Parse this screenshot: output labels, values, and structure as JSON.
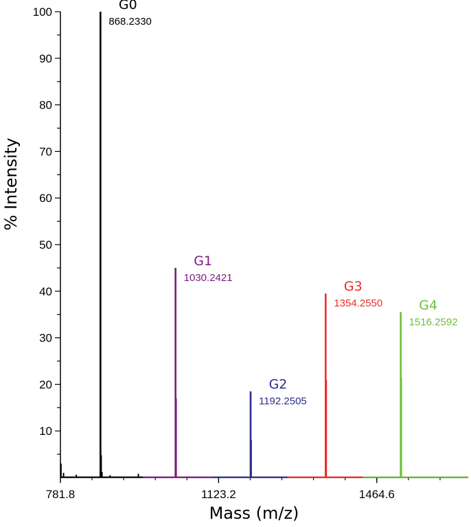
{
  "chart_data": {
    "type": "line",
    "xlabel": "Mass (m/z)",
    "ylabel": "% Intensity",
    "xlim": [
      781.8,
      1662.0
    ],
    "ylim": [
      0,
      100
    ],
    "x_ticks": [
      "781.8",
      "1123.2",
      "1464.6"
    ],
    "x_tick_values": [
      781.8,
      1123.2,
      1464.6
    ],
    "y_ticks": [
      "10",
      "20",
      "30",
      "40",
      "50",
      "60",
      "70",
      "80",
      "90",
      "100"
    ],
    "y_tick_values": [
      10,
      20,
      30,
      40,
      50,
      60,
      70,
      80,
      90,
      100
    ],
    "grid": false,
    "peaks": [
      {
        "name": "G0",
        "mass_label": "868.2330",
        "mass": 868.233,
        "intensity": 100,
        "color": "#000000"
      },
      {
        "name": "G1",
        "mass_label": "1030.2421",
        "mass": 1030.2421,
        "intensity": 45,
        "color": "#7b1a7e"
      },
      {
        "name": "G2",
        "mass_label": "1192.2505",
        "mass": 1192.2505,
        "intensity": 18.5,
        "color": "#2b2b8c"
      },
      {
        "name": "G3",
        "mass_label": "1354.2550",
        "mass": 1354.255,
        "intensity": 39.5,
        "color": "#ee2a2a"
      },
      {
        "name": "G4",
        "mass_label": "1516.2592",
        "mass": 1516.2592,
        "intensity": 35.5,
        "color": "#6cbf3a"
      }
    ],
    "minor_peaks": [
      {
        "mass": 783.0,
        "intensity": 3
      },
      {
        "mass": 788.5,
        "intensity": 1
      },
      {
        "mass": 816.0,
        "intensity": 0.6
      },
      {
        "mass": 869.8,
        "intensity": 4.8
      },
      {
        "mass": 871.5,
        "intensity": 1.2
      },
      {
        "mass": 889.0,
        "intensity": 0.5
      },
      {
        "mass": 950.0,
        "intensity": 0.8
      },
      {
        "mass": 1031.6,
        "intensity": 17
      },
      {
        "mass": 1193.6,
        "intensity": 8
      },
      {
        "mass": 1355.6,
        "intensity": 21
      },
      {
        "mass": 1517.6,
        "intensity": 21.5
      }
    ],
    "baseline_segments": [
      {
        "from": 781.8,
        "to": 960,
        "color": "#000000"
      },
      {
        "from": 960,
        "to": 1110,
        "color": "#7b1a7e"
      },
      {
        "from": 1110,
        "to": 1272,
        "color": "#2b2b8c"
      },
      {
        "from": 1272,
        "to": 1435,
        "color": "#ee2a2a"
      },
      {
        "from": 1435,
        "to": 1662,
        "color": "#6cbf3a"
      }
    ]
  }
}
